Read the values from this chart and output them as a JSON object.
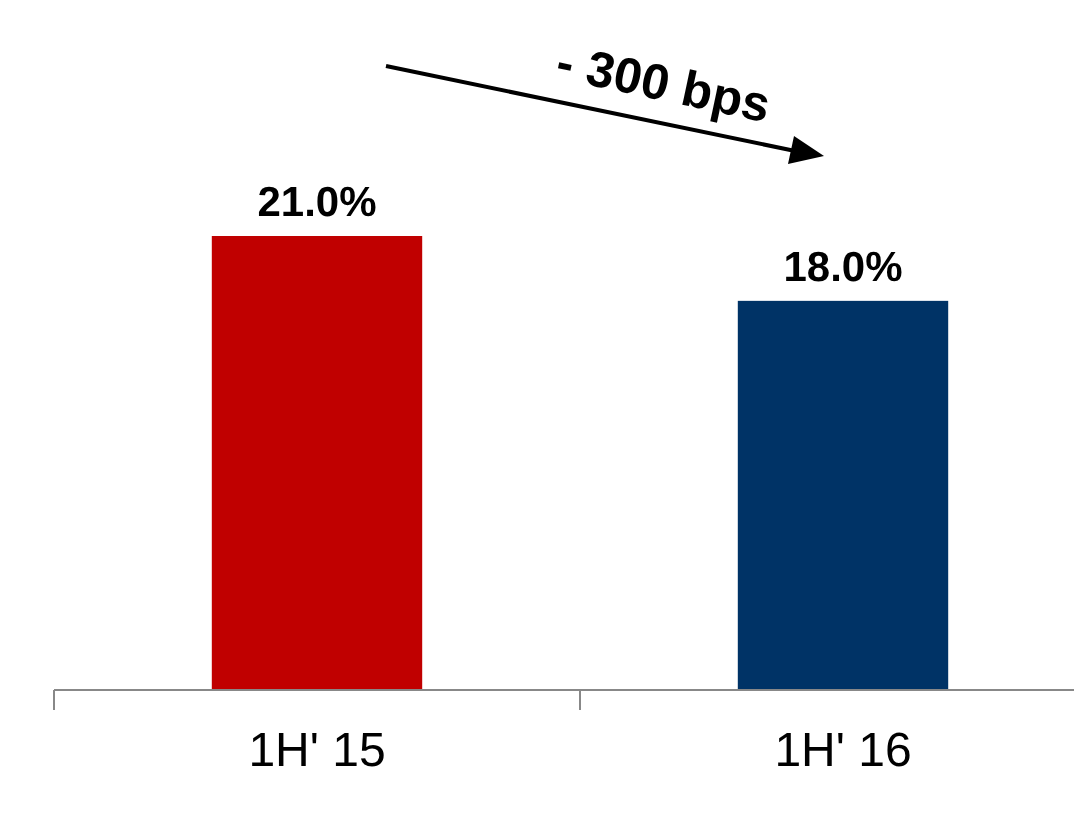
{
  "chart_data": {
    "type": "bar",
    "categories": [
      "1H' 15",
      "1H' 16"
    ],
    "values": [
      21.0,
      18.0
    ],
    "colors": [
      "#c00000",
      "#003366"
    ],
    "value_labels": [
      "21.0%",
      "18.0%"
    ],
    "annotations": [
      "- 300 bps"
    ]
  }
}
